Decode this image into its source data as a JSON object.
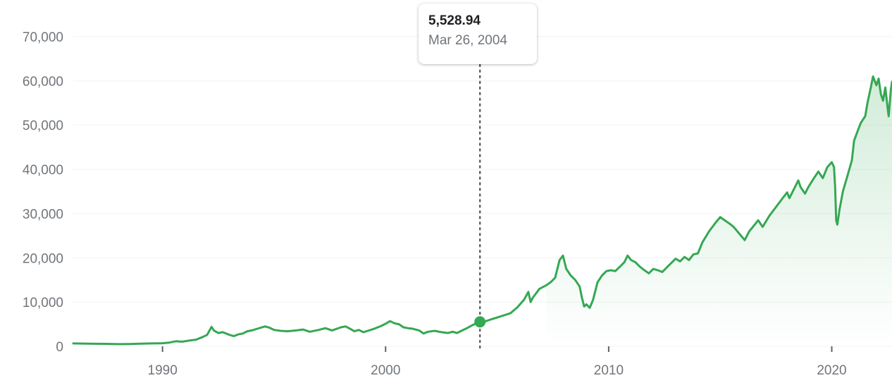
{
  "chart_data": {
    "type": "area",
    "yticks": [
      "70,000",
      "60,000",
      "50,000",
      "40,000",
      "30,000",
      "20,000",
      "10,000",
      "0"
    ],
    "ytick_values": [
      70000,
      60000,
      50000,
      40000,
      30000,
      20000,
      10000,
      0
    ],
    "xticks": [
      "1990",
      "2000",
      "2010",
      "2020"
    ],
    "xtick_values": [
      1990,
      2000,
      2010,
      2020
    ],
    "xlim": [
      1986,
      2022.7
    ],
    "ylim": [
      0,
      70000
    ],
    "grid": true,
    "colors": {
      "line": "#34a853",
      "fill": "#34a853",
      "grid": "#f1f3f4",
      "marker": "#34a853"
    },
    "tooltip": {
      "value": "5,528.94",
      "date": "Mar 26, 2004",
      "x": 2004.23,
      "y": 5528.94
    },
    "series": [
      {
        "points": [
          [
            1986.0,
            650
          ],
          [
            1986.5,
            620
          ],
          [
            1987.0,
            580
          ],
          [
            1987.5,
            550
          ],
          [
            1988.0,
            500
          ],
          [
            1988.5,
            520
          ],
          [
            1989.0,
            600
          ],
          [
            1989.5,
            650
          ],
          [
            1990.0,
            700
          ],
          [
            1990.3,
            850
          ],
          [
            1990.6,
            1150
          ],
          [
            1990.9,
            1050
          ],
          [
            1991.2,
            1300
          ],
          [
            1991.5,
            1500
          ],
          [
            1991.8,
            2100
          ],
          [
            1992.0,
            2600
          ],
          [
            1992.1,
            3500
          ],
          [
            1992.2,
            4400
          ],
          [
            1992.3,
            3600
          ],
          [
            1992.5,
            3000
          ],
          [
            1992.7,
            3200
          ],
          [
            1993.0,
            2600
          ],
          [
            1993.2,
            2300
          ],
          [
            1993.4,
            2700
          ],
          [
            1993.6,
            2900
          ],
          [
            1993.8,
            3400
          ],
          [
            1994.0,
            3600
          ],
          [
            1994.2,
            3900
          ],
          [
            1994.4,
            4200
          ],
          [
            1994.6,
            4500
          ],
          [
            1994.8,
            4200
          ],
          [
            1995.0,
            3700
          ],
          [
            1995.3,
            3500
          ],
          [
            1995.6,
            3400
          ],
          [
            1996.0,
            3600
          ],
          [
            1996.3,
            3800
          ],
          [
            1996.6,
            3300
          ],
          [
            1997.0,
            3700
          ],
          [
            1997.3,
            4100
          ],
          [
            1997.6,
            3600
          ],
          [
            1998.0,
            4300
          ],
          [
            1998.2,
            4500
          ],
          [
            1998.4,
            4000
          ],
          [
            1998.6,
            3400
          ],
          [
            1998.8,
            3700
          ],
          [
            1999.0,
            3200
          ],
          [
            1999.2,
            3500
          ],
          [
            1999.5,
            4000
          ],
          [
            1999.8,
            4600
          ],
          [
            2000.0,
            5100
          ],
          [
            2000.2,
            5700
          ],
          [
            2000.4,
            5200
          ],
          [
            2000.6,
            5000
          ],
          [
            2000.8,
            4300
          ],
          [
            2001.0,
            4100
          ],
          [
            2001.2,
            4000
          ],
          [
            2001.5,
            3600
          ],
          [
            2001.7,
            2900
          ],
          [
            2001.9,
            3300
          ],
          [
            2002.2,
            3500
          ],
          [
            2002.5,
            3200
          ],
          [
            2002.8,
            3000
          ],
          [
            2003.0,
            3300
          ],
          [
            2003.2,
            3000
          ],
          [
            2003.4,
            3500
          ],
          [
            2003.6,
            4000
          ],
          [
            2003.9,
            4800
          ],
          [
            2004.23,
            5528.94
          ],
          [
            2004.5,
            5700
          ],
          [
            2004.8,
            6200
          ],
          [
            2005.0,
            6500
          ],
          [
            2005.3,
            7000
          ],
          [
            2005.6,
            7500
          ],
          [
            2005.9,
            8800
          ],
          [
            2006.2,
            10500
          ],
          [
            2006.4,
            12300
          ],
          [
            2006.5,
            10000
          ],
          [
            2006.6,
            11000
          ],
          [
            2006.9,
            13000
          ],
          [
            2007.2,
            13800
          ],
          [
            2007.4,
            14500
          ],
          [
            2007.6,
            15500
          ],
          [
            2007.8,
            19500
          ],
          [
            2007.95,
            20500
          ],
          [
            2008.1,
            17500
          ],
          [
            2008.3,
            16000
          ],
          [
            2008.5,
            15000
          ],
          [
            2008.7,
            13500
          ],
          [
            2008.8,
            11000
          ],
          [
            2008.9,
            9000
          ],
          [
            2009.0,
            9500
          ],
          [
            2009.15,
            8700
          ],
          [
            2009.3,
            10500
          ],
          [
            2009.5,
            14500
          ],
          [
            2009.7,
            16000
          ],
          [
            2009.9,
            17000
          ],
          [
            2010.1,
            17200
          ],
          [
            2010.3,
            17000
          ],
          [
            2010.5,
            18000
          ],
          [
            2010.7,
            19000
          ],
          [
            2010.85,
            20500
          ],
          [
            2011.0,
            19500
          ],
          [
            2011.2,
            19000
          ],
          [
            2011.4,
            18000
          ],
          [
            2011.6,
            17200
          ],
          [
            2011.8,
            16500
          ],
          [
            2012.0,
            17500
          ],
          [
            2012.2,
            17200
          ],
          [
            2012.4,
            16800
          ],
          [
            2012.6,
            17800
          ],
          [
            2012.8,
            18800
          ],
          [
            2013.0,
            19800
          ],
          [
            2013.2,
            19200
          ],
          [
            2013.4,
            20200
          ],
          [
            2013.6,
            19500
          ],
          [
            2013.8,
            20800
          ],
          [
            2014.0,
            21000
          ],
          [
            2014.2,
            23500
          ],
          [
            2014.5,
            26000
          ],
          [
            2014.8,
            28000
          ],
          [
            2015.0,
            29200
          ],
          [
            2015.2,
            28500
          ],
          [
            2015.4,
            27800
          ],
          [
            2015.6,
            27000
          ],
          [
            2015.9,
            25200
          ],
          [
            2016.1,
            24000
          ],
          [
            2016.3,
            26000
          ],
          [
            2016.5,
            27200
          ],
          [
            2016.7,
            28500
          ],
          [
            2016.9,
            27000
          ],
          [
            2017.2,
            29500
          ],
          [
            2017.5,
            31500
          ],
          [
            2017.8,
            33500
          ],
          [
            2018.0,
            34800
          ],
          [
            2018.1,
            33500
          ],
          [
            2018.3,
            35500
          ],
          [
            2018.5,
            37500
          ],
          [
            2018.6,
            36000
          ],
          [
            2018.8,
            34500
          ],
          [
            2018.95,
            36000
          ],
          [
            2019.2,
            38000
          ],
          [
            2019.4,
            39500
          ],
          [
            2019.6,
            38000
          ],
          [
            2019.8,
            40500
          ],
          [
            2020.0,
            41600
          ],
          [
            2020.1,
            40500
          ],
          [
            2020.15,
            36000
          ],
          [
            2020.2,
            28500
          ],
          [
            2020.25,
            27500
          ],
          [
            2020.35,
            31000
          ],
          [
            2020.5,
            35000
          ],
          [
            2020.7,
            38500
          ],
          [
            2020.9,
            42000
          ],
          [
            2021.0,
            46500
          ],
          [
            2021.15,
            48500
          ],
          [
            2021.3,
            50500
          ],
          [
            2021.5,
            52000
          ],
          [
            2021.6,
            55000
          ],
          [
            2021.75,
            58500
          ],
          [
            2021.85,
            61000
          ],
          [
            2022.0,
            59000
          ],
          [
            2022.1,
            60500
          ],
          [
            2022.2,
            57000
          ],
          [
            2022.3,
            55500
          ],
          [
            2022.4,
            58500
          ],
          [
            2022.5,
            54000
          ],
          [
            2022.55,
            52000
          ],
          [
            2022.65,
            58000
          ],
          [
            2022.7,
            59800
          ]
        ]
      }
    ]
  }
}
